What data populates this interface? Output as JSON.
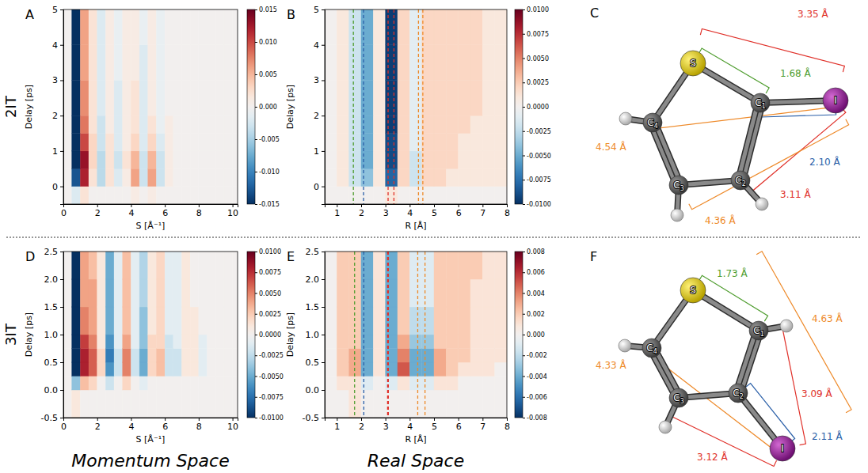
{
  "chart_data": [
    {
      "type": "heatmap",
      "panel": "A",
      "x_label": "S [Å⁻¹]",
      "y_label": "Delay [ps]",
      "color": "RdBu_r",
      "xlim": [
        0,
        10.3
      ],
      "xticks": [
        0,
        2,
        4,
        6,
        8,
        10
      ],
      "ylim": [
        -0.5,
        5
      ],
      "yticks": [
        0,
        1,
        2,
        3,
        4,
        5
      ],
      "x_bins": [
        0,
        0.5,
        1,
        1.5,
        2,
        2.5,
        3,
        3.5,
        4,
        4.5,
        5,
        5.5,
        6,
        6.5,
        7,
        7.5,
        8,
        8.5,
        9,
        9.5,
        10,
        10.5
      ],
      "y_bins": [
        -0.5,
        0,
        0.5,
        1,
        1.5,
        2,
        3,
        4,
        5
      ],
      "values": [
        [
          0,
          -0.002,
          0.002,
          0,
          0,
          0,
          0,
          0,
          0.001,
          0,
          0.001,
          0,
          0,
          0,
          0,
          0,
          0,
          0,
          0,
          0,
          0
        ],
        [
          0,
          -0.013,
          0.012,
          0.002,
          -0.004,
          0.002,
          -0.002,
          0.001,
          0.006,
          -0.003,
          0.006,
          -0.003,
          0.001,
          0,
          0,
          0,
          0,
          0,
          0,
          0,
          0
        ],
        [
          0,
          -0.015,
          0.013,
          0.003,
          -0.004,
          0.002,
          -0.003,
          0.002,
          0.005,
          -0.003,
          0.005,
          -0.003,
          0.001,
          0,
          0,
          0,
          0,
          0,
          0,
          0,
          0
        ],
        [
          0,
          -0.015,
          0.01,
          0.003,
          -0.003,
          0.002,
          -0.002,
          0.001,
          0.003,
          -0.002,
          0.003,
          -0.002,
          0.001,
          0,
          0,
          0,
          0,
          0,
          0,
          0,
          0
        ],
        [
          0,
          -0.015,
          0.008,
          0.002,
          -0.003,
          0.001,
          -0.002,
          0.001,
          0.002,
          -0.002,
          0.002,
          -0.001,
          0.001,
          0,
          0,
          0,
          0,
          0,
          0,
          0,
          0
        ],
        [
          0,
          -0.015,
          0.007,
          0.002,
          -0.002,
          0.001,
          -0.002,
          0.001,
          0.002,
          -0.002,
          0.001,
          -0.001,
          0,
          0,
          0,
          0,
          0,
          0,
          0,
          0,
          0
        ],
        [
          0,
          -0.015,
          0.006,
          0.002,
          -0.002,
          0.001,
          -0.001,
          0.001,
          0.001,
          -0.002,
          0.001,
          -0.001,
          0,
          0,
          0,
          0,
          0,
          0,
          0,
          0,
          0
        ],
        [
          0,
          -0.015,
          0.006,
          0.002,
          -0.002,
          0.001,
          -0.001,
          0.001,
          0.001,
          -0.001,
          0.001,
          -0.001,
          0,
          0,
          0,
          0,
          0,
          0,
          0,
          0,
          0
        ]
      ],
      "colorbar": {
        "range": [
          -0.015,
          0.015
        ],
        "ticks": [
          -0.015,
          {
            "value": -0.01,
            "label": "-0.010"
          },
          -0.005,
          {
            "value": 0,
            "label": "0.000"
          },
          0.005,
          {
            "value": 0.01,
            "label": "0.010"
          },
          0.015
        ]
      }
    },
    {
      "type": "heatmap",
      "panel": "B",
      "x_label": "R [Å]",
      "y_label": "Delay [ps]",
      "color": "RdBu_r",
      "xlim": [
        0.5,
        8
      ],
      "xticks": [
        1,
        2,
        3,
        4,
        5,
        6,
        7,
        8
      ],
      "ylim": [
        -0.5,
        5
      ],
      "yticks": [
        0,
        1,
        2,
        3,
        4,
        5
      ],
      "x_bins": [
        0.5,
        1,
        1.5,
        2,
        2.5,
        3,
        3.5,
        4,
        4.5,
        5,
        5.5,
        6,
        6.5,
        7,
        7.5,
        8
      ],
      "y_bins": [
        -0.5,
        0,
        0.5,
        1,
        1.5,
        2,
        3,
        4,
        5
      ],
      "values": [
        [
          0,
          0,
          0,
          0,
          0,
          0.001,
          0,
          0,
          0,
          0,
          0,
          0,
          0,
          0,
          0
        ],
        [
          0,
          0.001,
          -0.002,
          -0.004,
          0.001,
          -0.008,
          0.002,
          -0.002,
          0.002,
          0.002,
          0.001,
          0.001,
          0.001,
          0.001,
          0.001
        ],
        [
          0,
          0.001,
          -0.002,
          -0.005,
          0.001,
          -0.009,
          0.002,
          -0.002,
          0.002,
          0.002,
          0.002,
          0.001,
          0.001,
          0.001,
          0.001
        ],
        [
          0,
          0.001,
          -0.002,
          -0.005,
          0.001,
          -0.009,
          0.002,
          -0.001,
          0.002,
          0.002,
          0.002,
          0.001,
          0.001,
          0.001,
          0.001
        ],
        [
          0,
          0.001,
          -0.002,
          -0.005,
          0.001,
          -0.0095,
          0.002,
          -0.001,
          0.002,
          0.002,
          0.002,
          0.002,
          0.001,
          0.001,
          0.001
        ],
        [
          0,
          0.001,
          -0.002,
          -0.005,
          0.001,
          -0.0095,
          0.002,
          -0.001,
          0.002,
          0.002,
          0.002,
          0.002,
          0.002,
          0.001,
          0.001
        ],
        [
          0,
          0.001,
          -0.002,
          -0.005,
          0.001,
          -0.0095,
          0.002,
          -0.001,
          0.002,
          0.002,
          0.002,
          0.002,
          0.002,
          0.001,
          0.001
        ],
        [
          0,
          0.001,
          -0.002,
          -0.005,
          0.001,
          -0.0095,
          0.002,
          -0.001,
          0.002,
          0.002,
          0.002,
          0.002,
          0.002,
          0.001,
          0.001
        ]
      ],
      "colorbar": {
        "range": [
          -0.01,
          0.01
        ],
        "ticks": [
          {
            "value": -0.01,
            "label": "-0.0100"
          },
          -0.0075,
          {
            "value": -0.005,
            "label": "-0.0050"
          },
          -0.0025,
          {
            "value": 0,
            "label": "0.0000"
          },
          0.0025,
          {
            "value": 0.005,
            "label": "0.0050"
          },
          0.0075,
          {
            "value": 0.01,
            "label": "0.0100"
          }
        ]
      }
    },
    {
      "type": "heatmap",
      "panel": "D",
      "x_label": "S [Å⁻¹]",
      "y_label": "Delay [ps]",
      "color": "RdBu_r",
      "xlim": [
        0,
        10.3
      ],
      "xticks": [
        0,
        2,
        4,
        6,
        8,
        10
      ],
      "ylim": [
        -0.5,
        2.5
      ],
      "yticks": [
        -0.5,
        {
          "value": 0,
          "label": "0.0"
        },
        0.5,
        {
          "value": 1,
          "label": "1.0"
        },
        1.5,
        {
          "value": 2,
          "label": "2.0"
        },
        2.5
      ],
      "x_bins": [
        0,
        0.5,
        1,
        1.5,
        2,
        2.5,
        3,
        3.5,
        4,
        4.5,
        5,
        5.5,
        6,
        6.5,
        7,
        7.5,
        8,
        8.5,
        9,
        9.5,
        10,
        10.5
      ],
      "y_bins": [
        -0.5,
        0,
        0.25,
        0.5,
        0.75,
        1,
        1.5,
        2,
        2.5
      ],
      "values": [
        [
          0,
          0.001,
          0,
          0,
          0,
          0,
          0,
          0,
          0,
          0,
          0,
          0,
          0,
          0,
          0,
          0,
          0,
          0,
          0,
          0,
          0
        ],
        [
          0,
          -0.004,
          0.003,
          0.002,
          0,
          -0.002,
          0,
          0.002,
          0,
          -0.001,
          0,
          0,
          0,
          0,
          0,
          0,
          0,
          0,
          0,
          0,
          0
        ],
        [
          0,
          -0.01,
          0.008,
          0.006,
          0.002,
          -0.006,
          -0.002,
          0.005,
          -0.002,
          -0.005,
          0.002,
          0.003,
          -0.002,
          -0.002,
          0.001,
          0.001,
          -0.001,
          0,
          0,
          0,
          0
        ],
        [
          0,
          -0.01,
          0.008,
          0.006,
          0.002,
          -0.007,
          -0.002,
          0.005,
          -0.002,
          -0.005,
          0.002,
          0.003,
          -0.002,
          -0.002,
          0.001,
          0.001,
          -0.001,
          0,
          0,
          0,
          0
        ],
        [
          0,
          -0.01,
          0.007,
          0.005,
          0.001,
          -0.006,
          -0.001,
          0.004,
          -0.001,
          -0.004,
          0.002,
          0.002,
          -0.002,
          -0.001,
          0.001,
          0.001,
          -0.001,
          0,
          0,
          0,
          0
        ],
        [
          0,
          -0.01,
          0.005,
          0.004,
          0.001,
          -0.005,
          -0.001,
          0.003,
          -0.001,
          -0.004,
          0.001,
          0.002,
          -0.001,
          -0.001,
          0.001,
          0.001,
          0,
          0,
          0,
          0,
          0
        ],
        [
          0,
          -0.01,
          0.004,
          0.004,
          0.001,
          -0.005,
          -0.001,
          0.003,
          -0.001,
          -0.003,
          0.001,
          0.002,
          -0.001,
          -0.001,
          0.001,
          0,
          0,
          0,
          0,
          0,
          0
        ],
        [
          0,
          -0.01,
          0.004,
          0.003,
          0.001,
          -0.005,
          -0.001,
          0.003,
          -0.001,
          -0.003,
          0.001,
          0.002,
          -0.001,
          -0.001,
          0.001,
          0,
          0,
          0,
          0,
          0,
          0
        ]
      ],
      "colorbar": {
        "range": [
          -0.01,
          0.01
        ],
        "ticks": [
          {
            "value": -0.01,
            "label": "-0.0100"
          },
          -0.0075,
          {
            "value": -0.005,
            "label": "-0.0050"
          },
          -0.0025,
          {
            "value": 0,
            "label": "0.0000"
          },
          0.0025,
          {
            "value": 0.005,
            "label": "0.0050"
          },
          0.0075,
          {
            "value": 0.01,
            "label": "0.0100"
          }
        ]
      }
    },
    {
      "type": "heatmap",
      "panel": "E",
      "x_label": "R [Å]",
      "y_label": "Delay [ps]",
      "color": "RdBu_r",
      "xlim": [
        0.5,
        8
      ],
      "xticks": [
        1,
        2,
        3,
        4,
        5,
        6,
        7,
        8
      ],
      "ylim": [
        -0.5,
        2.5
      ],
      "yticks": [
        -0.5,
        {
          "value": 0,
          "label": "0.0"
        },
        0.5,
        {
          "value": 1,
          "label": "1.0"
        },
        1.5,
        {
          "value": 2,
          "label": "2.0"
        },
        2.5
      ],
      "x_bins": [
        0.5,
        1,
        1.5,
        2,
        2.5,
        3,
        3.5,
        4,
        4.5,
        5,
        5.5,
        6,
        6.5,
        7,
        7.5,
        8
      ],
      "y_bins": [
        -0.5,
        0,
        0.25,
        0.5,
        0.75,
        1,
        1.5,
        2,
        2.5
      ],
      "values": [
        [
          0,
          0,
          0.001,
          0,
          0,
          0,
          0,
          0,
          0,
          0,
          0,
          0,
          0,
          0,
          0
        ],
        [
          0,
          0.001,
          0.001,
          -0.001,
          0,
          -0.001,
          0.001,
          -0.001,
          -0.001,
          0.001,
          0.001,
          0,
          0,
          0,
          0
        ],
        [
          0,
          0.002,
          0.003,
          -0.004,
          0.001,
          -0.004,
          0.005,
          -0.004,
          -0.004,
          0.003,
          0.002,
          0.001,
          0.001,
          0.001,
          0
        ],
        [
          0,
          0.002,
          0.003,
          -0.004,
          0.001,
          -0.004,
          0.004,
          -0.004,
          -0.004,
          0.003,
          0.002,
          0.002,
          0.001,
          0.001,
          0.001
        ],
        [
          0,
          0.002,
          0.002,
          -0.004,
          0.001,
          -0.004,
          0.003,
          -0.003,
          -0.003,
          0.002,
          0.002,
          0.002,
          0.001,
          0.001,
          0.001
        ],
        [
          0,
          0.002,
          0.002,
          -0.004,
          0.001,
          -0.004,
          0.002,
          -0.002,
          -0.002,
          0.002,
          0.002,
          0.002,
          0.001,
          0.001,
          0.001
        ],
        [
          0,
          0.002,
          0.002,
          -0.004,
          0.001,
          -0.004,
          0.002,
          -0.001,
          -0.001,
          0.002,
          0.002,
          0.002,
          0.001,
          0.001,
          0.001
        ],
        [
          0,
          0.002,
          0.002,
          -0.004,
          0.001,
          -0.004,
          0.002,
          -0.001,
          -0.001,
          0.002,
          0.002,
          0.002,
          0.002,
          0.001,
          0.001
        ]
      ],
      "colorbar": {
        "range": [
          -0.008,
          0.008
        ],
        "ticks": [
          -0.008,
          -0.006,
          -0.004,
          -0.002,
          {
            "value": 0,
            "label": "0.000"
          },
          0.002,
          0.004,
          0.006,
          0.008
        ]
      }
    }
  ],
  "row_labels": [
    "2IT",
    "3IT"
  ],
  "column_labels": [
    "Momentum Space",
    "Real Space"
  ],
  "molecules": [
    {
      "panel": "C",
      "atoms": [
        "S",
        "C1",
        "C2",
        "C3",
        "C4",
        "I"
      ],
      "distances": [
        {
          "from": "S",
          "to": "I",
          "value": 3.35,
          "label": "3.35 Å",
          "color": "#e0312a"
        },
        {
          "from": "S",
          "to": "C1",
          "value": 1.68,
          "label": "1.68 Å",
          "color": "#4f9d2f"
        },
        {
          "from": "C4",
          "to": "I",
          "value": 4.54,
          "label": "4.54 Å",
          "color": "#ee8a2a"
        },
        {
          "from": "C1",
          "to": "I",
          "value": 2.1,
          "label": "2.10 Å",
          "color": "#2a5fa8"
        },
        {
          "from": "C2",
          "to": "I",
          "value": 3.11,
          "label": "3.11 Å",
          "color": "#e0312a"
        },
        {
          "from": "C3",
          "to": "I",
          "value": 4.36,
          "label": "4.36 Å",
          "color": "#ee8a2a"
        }
      ]
    },
    {
      "panel": "F",
      "atoms": [
        "S",
        "C1",
        "C2",
        "C3",
        "C4",
        "I"
      ],
      "distances": [
        {
          "from": "S",
          "to": "C1",
          "value": 1.73,
          "label": "1.73 Å",
          "color": "#4f9d2f"
        },
        {
          "from": "S",
          "to": "I",
          "value": 4.63,
          "label": "4.63 Å",
          "color": "#ee8a2a"
        },
        {
          "from": "C1",
          "to": "I",
          "value": 3.09,
          "label": "3.09 Å",
          "color": "#e0312a"
        },
        {
          "from": "C2",
          "to": "I",
          "value": 2.11,
          "label": "2.11 Å",
          "color": "#2a5fa8"
        },
        {
          "from": "C3",
          "to": "I",
          "value": 3.12,
          "label": "3.12 Å",
          "color": "#e0312a"
        },
        {
          "from": "C4",
          "to": "I",
          "value": 4.33,
          "label": "4.33 Å",
          "color": "#ee8a2a"
        }
      ]
    }
  ]
}
